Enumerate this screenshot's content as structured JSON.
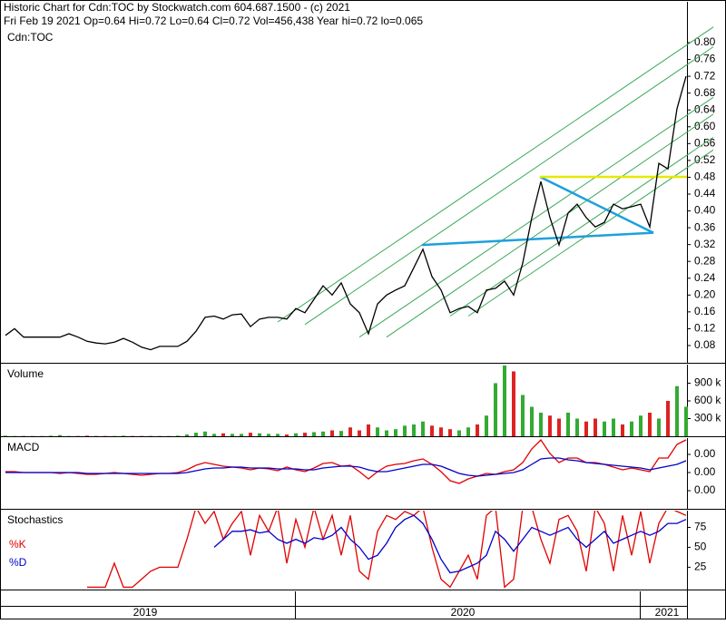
{
  "header": [
    "Historic Chart for Cdn:TOC by Stockwatch.com 604.687.1500 - (c) 2021",
    "Fri Feb 19 2021  Op=0.64  Hi=0.72  Lo=0.64  Cl=0.72  Vol=456,438  Year hi=0.72  lo=0.065"
  ],
  "time_axis": {
    "labels": [
      "2019",
      "2020",
      "2021"
    ]
  },
  "chart_data": [
    {
      "type": "line",
      "title": "Cdn:TOC",
      "ylim": [
        0.039,
        0.897
      ],
      "yticks": [
        0.08,
        0.12,
        0.16,
        {
          "value": 0.2,
          "label": "0.20"
        },
        0.24,
        0.28,
        0.32,
        0.36,
        {
          "value": 0.4,
          "label": "0.40"
        },
        0.44,
        0.48,
        0.52,
        0.56,
        {
          "value": 0.6,
          "label": "0.60"
        },
        0.64,
        0.68,
        0.72,
        0.76,
        {
          "value": 0.8,
          "label": "0.80"
        }
      ],
      "series": [
        {
          "color": "#000000",
          "values": [
            0.104,
            0.12,
            0.1,
            0.1,
            0.1,
            0.1,
            0.1,
            0.108,
            0.1,
            0.09,
            0.086,
            0.084,
            0.088,
            0.097,
            0.088,
            0.076,
            0.07,
            0.078,
            0.078,
            0.078,
            0.09,
            0.114,
            0.147,
            0.15,
            0.143,
            0.153,
            0.155,
            0.125,
            0.143,
            0.147,
            0.147,
            0.143,
            0.168,
            0.158,
            0.19,
            0.222,
            0.2,
            0.229,
            0.179,
            0.158,
            0.108,
            0.179,
            0.2,
            0.212,
            0.222,
            0.265,
            0.309,
            0.244,
            0.212,
            0.158,
            0.168,
            0.173,
            0.158,
            0.212,
            0.216,
            0.233,
            0.2,
            0.276,
            0.384,
            0.47,
            0.384,
            0.319,
            0.395,
            0.416,
            0.384,
            0.362,
            0.373,
            0.416,
            0.405,
            0.41,
            0.416,
            0.362,
            0.513,
            0.5,
            0.643,
            0.72
          ]
        }
      ],
      "lines": [
        {
          "color": "#3aa856",
          "x": [
            30,
            78
          ],
          "y": [
            0.136,
            0.837
          ]
        },
        {
          "color": "#3aa856",
          "x": [
            33,
            78
          ],
          "y": [
            0.13,
            0.79
          ]
        },
        {
          "color": "#3aa856",
          "x": [
            39,
            78
          ],
          "y": [
            0.1,
            0.67
          ]
        },
        {
          "color": "#3aa856",
          "x": [
            42,
            78
          ],
          "y": [
            0.1,
            0.63
          ]
        },
        {
          "color": "#3aa856",
          "x": [
            49,
            78
          ],
          "y": [
            0.15,
            0.575
          ]
        },
        {
          "color": "#3aa856",
          "x": [
            51,
            78
          ],
          "y": [
            0.15,
            0.545
          ]
        },
        {
          "color": "#1ea0dc",
          "x": [
            45.9,
            71.4
          ],
          "y": [
            0.319,
            0.348
          ]
        },
        {
          "color": "#1ea0dc",
          "x": [
            58.9,
            71.4
          ],
          "y": [
            0.481,
            0.348
          ]
        },
        {
          "color": "#e8e800",
          "x": [
            58.9,
            75.1
          ],
          "y": [
            0.481,
            0.481
          ]
        }
      ]
    },
    {
      "type": "bar",
      "title": "Volume",
      "ylim": [
        0,
        1215
      ],
      "yticks": [
        {
          "value": 300,
          "label": "300 k"
        },
        {
          "value": 600,
          "label": "600 k"
        },
        {
          "value": 900,
          "label": "900 k"
        }
      ],
      "up_color": "#33aa33",
      "down_color": "#dd2222",
      "values": [
        10,
        5,
        5,
        5,
        5,
        10,
        20,
        5,
        5,
        10,
        5,
        5,
        5,
        10,
        5,
        5,
        5,
        5,
        5,
        10,
        30,
        60,
        80,
        40,
        50,
        40,
        40,
        60,
        50,
        40,
        40,
        30,
        50,
        60,
        70,
        80,
        100,
        90,
        150,
        100,
        200,
        150,
        100,
        120,
        180,
        200,
        250,
        180,
        150,
        120,
        100,
        150,
        200,
        350,
        900,
        1200,
        1100,
        700,
        500,
        400,
        350,
        300,
        400,
        300,
        250,
        300,
        250,
        300,
        200,
        250,
        350,
        400,
        300,
        600,
        850,
        500
      ]
    },
    {
      "type": "line",
      "title": "MACD",
      "ylim": [
        -0.04,
        0.038
      ],
      "yticks": [
        {
          "value": 0.02,
          "label": "0.00"
        },
        {
          "value": 0,
          "label": "0.00"
        },
        {
          "value": -0.02,
          "label": "0.00"
        }
      ],
      "series": [
        {
          "color": "#e00000",
          "values": [
            0.001,
            0.001,
            0,
            0,
            0,
            0,
            -0.001,
            0,
            -0.001,
            -0.002,
            -0.002,
            -0.001,
            0,
            -0.001,
            -0.002,
            -0.003,
            -0.002,
            -0.001,
            -0.001,
            0,
            0.003,
            0.008,
            0.011,
            0.009,
            0.007,
            0.006,
            0.005,
            0.003,
            0.005,
            0.004,
            0.002,
            0.006,
            0.003,
            0.001,
            0.005,
            0.01,
            0.011,
            0.007,
            0.008,
            0.001,
            -0.007,
            0.001,
            0.007,
            0.009,
            0.01,
            0.013,
            0.015,
            0.009,
            0.001,
            -0.009,
            -0.012,
            -0.007,
            -0.004,
            -0.001,
            -0.002,
            0.001,
            0.003,
            0.011,
            0.026,
            0.036,
            0.021,
            0.011,
            0.016,
            0.016,
            0.011,
            0.011,
            0.009,
            0.006,
            0.003,
            0.005,
            0.003,
            0.001,
            0.016,
            0.016,
            0.031,
            0.036
          ]
        },
        {
          "color": "#0000cc",
          "values": [
            0,
            0,
            0,
            0,
            0,
            0,
            0,
            0,
            0,
            -0.001,
            -0.001,
            -0.001,
            -0.001,
            -0.001,
            -0.001,
            -0.001,
            -0.001,
            -0.001,
            -0.001,
            -0.001,
            0,
            0.002,
            0.004,
            0.005,
            0.005,
            0.006,
            0.006,
            0.005,
            0.005,
            0.005,
            0.004,
            0.004,
            0.004,
            0.003,
            0.003,
            0.005,
            0.006,
            0.007,
            0.007,
            0.006,
            0.003,
            0.001,
            0.001,
            0.003,
            0.005,
            0.007,
            0.009,
            0.009,
            0.007,
            0.003,
            -0.001,
            -0.003,
            -0.004,
            -0.003,
            -0.002,
            -0.001,
            0,
            0.003,
            0.009,
            0.015,
            0.016,
            0.016,
            0.014,
            0.013,
            0.011,
            0.01,
            0.009,
            0.008,
            0.007,
            0.006,
            0.005,
            0.003,
            0.005,
            0.007,
            0.009,
            0.013
          ]
        }
      ]
    },
    {
      "type": "line",
      "title": "Stochastics",
      "ylim": [
        -3,
        96
      ],
      "yticks": [
        25,
        50,
        75
      ],
      "series": [
        {
          "name": "%K",
          "color": "#e00000",
          "values": [
            null,
            null,
            null,
            null,
            null,
            null,
            null,
            null,
            null,
            0,
            0,
            0,
            30,
            0,
            0,
            10,
            20,
            25,
            25,
            25,
            60,
            100,
            80,
            95,
            60,
            80,
            95,
            40,
            90,
            70,
            100,
            30,
            85,
            50,
            100,
            60,
            90,
            40,
            90,
            20,
            10,
            70,
            90,
            85,
            95,
            90,
            100,
            50,
            10,
            0,
            20,
            40,
            10,
            90,
            100,
            0,
            10,
            100,
            100,
            60,
            30,
            85,
            90,
            70,
            20,
            100,
            80,
            20,
            90,
            40,
            95,
            30,
            80,
            100,
            95,
            90
          ]
        },
        {
          "name": "%D",
          "color": "#0000cc",
          "values": [
            null,
            null,
            null,
            null,
            null,
            null,
            null,
            null,
            null,
            null,
            null,
            null,
            null,
            null,
            null,
            null,
            null,
            null,
            null,
            null,
            null,
            null,
            null,
            50,
            60,
            70,
            70,
            72,
            68,
            70,
            60,
            55,
            60,
            55,
            62,
            60,
            65,
            75,
            60,
            50,
            35,
            40,
            55,
            75,
            85,
            90,
            80,
            60,
            35,
            18,
            20,
            25,
            30,
            40,
            70,
            60,
            45,
            60,
            75,
            70,
            65,
            70,
            75,
            60,
            50,
            60,
            70,
            55,
            60,
            65,
            70,
            65,
            70,
            80,
            80,
            85
          ]
        }
      ]
    }
  ]
}
